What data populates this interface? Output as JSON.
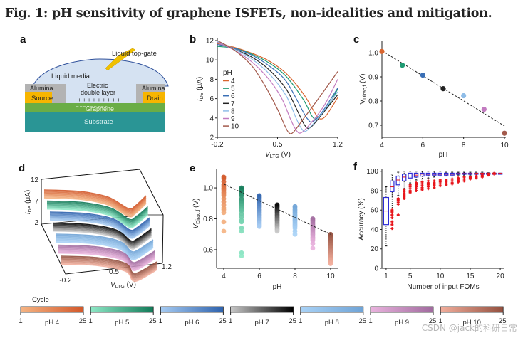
{
  "figure": {
    "title": "Fig. 1: pH sensitivity of graphene ISFETs, non-idealities and mitigation.",
    "watermark": "CSDN @jack的科研日常"
  },
  "colors": {
    "pH4": "#d9652e",
    "pH5": "#1e9a72",
    "pH6": "#3a6fb5",
    "pH7": "#222222",
    "pH8": "#8fbde8",
    "pH9": "#c27bc0",
    "pH10": "#a35a4c",
    "box_blue": "#2b2bd6",
    "outlier_red": "#e8151b",
    "median_red": "#e8151b"
  },
  "panel_a": {
    "letter": "a",
    "labels": {
      "liquid_top_gate": "Liquid top-gate",
      "liquid_media": "Liquid media",
      "alumina_left": "Alumina",
      "alumina_right": "Alumina",
      "electric_double_layer_1": "Electric",
      "electric_double_layer_2": "double layer",
      "plus_signs": "+ + + + + + + + +",
      "minus_signs": "– – – – – – – – –",
      "source": "Source",
      "drain": "Drain",
      "graphene": "Graphene",
      "substrate": "Substrate"
    },
    "layer_colors": {
      "liquid": "#d5e2f2",
      "liquid_edge": "#2d4f9a",
      "alumina": "#b3b3b3",
      "electrode": "#f7b500",
      "graphene": "#6aad46",
      "substrate": "#2a9595",
      "gate": "#f0c000"
    }
  },
  "chart_data": [
    {
      "id": "b",
      "type": "line",
      "title": "",
      "xlabel": "V_LTG (V)",
      "ylabel": "I_DS (μA)",
      "xlim": [
        -0.2,
        1.2
      ],
      "ylim": [
        2,
        12
      ],
      "xticks": [
        "-0.2",
        "0.5",
        "1.2"
      ],
      "yticks": [
        "2",
        "4",
        "6",
        "8",
        "10",
        "12"
      ],
      "legend_title": "pH",
      "legend_position": "left-center",
      "series": [
        {
          "name": "4",
          "color_key": "pH4",
          "x": [
            -0.2,
            0.0,
            0.2,
            0.4,
            0.6,
            0.8,
            0.95,
            1.0,
            1.05,
            1.1,
            1.2
          ],
          "y": [
            11.7,
            11.3,
            10.7,
            9.9,
            8.6,
            6.5,
            4.3,
            3.9,
            4.1,
            4.7,
            6.1
          ]
        },
        {
          "name": "5",
          "color_key": "pH5",
          "x": [
            -0.2,
            0.0,
            0.2,
            0.4,
            0.6,
            0.8,
            0.9,
            0.95,
            1.0,
            1.1,
            1.2
          ],
          "y": [
            11.4,
            11.2,
            10.6,
            9.7,
            8.3,
            5.9,
            4.2,
            3.9,
            4.2,
            5.4,
            7.0
          ]
        },
        {
          "name": "6",
          "color_key": "pH6",
          "x": [
            -0.2,
            0.0,
            0.2,
            0.4,
            0.6,
            0.8,
            0.85,
            0.9,
            1.0,
            1.1,
            1.2
          ],
          "y": [
            11.6,
            11.2,
            10.5,
            9.4,
            7.8,
            4.6,
            3.9,
            3.6,
            4.4,
            5.7,
            7.1
          ]
        },
        {
          "name": "7",
          "color_key": "pH7",
          "x": [
            -0.2,
            0.0,
            0.2,
            0.4,
            0.6,
            0.75,
            0.82,
            0.88,
            1.0,
            1.1,
            1.2
          ],
          "y": [
            11.8,
            11.1,
            10.3,
            9.0,
            7.0,
            4.4,
            3.2,
            3.0,
            4.2,
            5.3,
            6.4
          ]
        },
        {
          "name": "8",
          "color_key": "pH8",
          "x": [
            -0.2,
            0.0,
            0.2,
            0.4,
            0.6,
            0.72,
            0.78,
            0.84,
            1.0,
            1.1,
            1.2
          ],
          "y": [
            11.9,
            11.1,
            10.1,
            8.6,
            6.3,
            3.9,
            2.9,
            2.7,
            4.3,
            5.5,
            6.7
          ]
        },
        {
          "name": "9",
          "color_key": "pH9",
          "x": [
            -0.2,
            0.0,
            0.2,
            0.4,
            0.55,
            0.65,
            0.72,
            0.78,
            0.9,
            1.05,
            1.2
          ],
          "y": [
            11.8,
            11.0,
            9.8,
            8.0,
            6.0,
            3.9,
            2.7,
            2.5,
            3.6,
            5.4,
            8.0
          ]
        },
        {
          "name": "10",
          "color_key": "pH10",
          "x": [
            -0.2,
            0.0,
            0.2,
            0.35,
            0.5,
            0.58,
            0.63,
            0.68,
            0.8,
            1.0,
            1.2
          ],
          "y": [
            12.0,
            11.0,
            9.4,
            7.4,
            4.9,
            3.3,
            2.5,
            2.5,
            3.9,
            6.3,
            8.8
          ]
        }
      ]
    },
    {
      "id": "c",
      "type": "scatter",
      "title": "",
      "xlabel": "pH",
      "ylabel": "V_Dirac,f (V)",
      "xlim": [
        4,
        10
      ],
      "ylim": [
        0.65,
        1.05
      ],
      "xticks": [
        "4",
        "6",
        "8",
        "10"
      ],
      "yticks": [
        "0.7",
        "0.8",
        "0.9",
        "1.0"
      ],
      "points": [
        {
          "x": 4,
          "y": 1.005,
          "color_key": "pH4"
        },
        {
          "x": 5,
          "y": 0.948,
          "color_key": "pH5"
        },
        {
          "x": 6,
          "y": 0.907,
          "color_key": "pH6"
        },
        {
          "x": 7,
          "y": 0.851,
          "color_key": "pH7"
        },
        {
          "x": 8,
          "y": 0.822,
          "color_key": "pH8"
        },
        {
          "x": 9,
          "y": 0.766,
          "color_key": "pH9"
        },
        {
          "x": 10,
          "y": 0.667,
          "color_key": "pH10"
        }
      ],
      "fit_line": {
        "style": "dashed",
        "x": [
          4,
          10
        ],
        "y": [
          1.008,
          0.697
        ]
      }
    },
    {
      "id": "d",
      "type": "line",
      "subtype": "3d-waterfall",
      "xlabel": "V_LTG (V)",
      "ylabel": "I_DS (μA)",
      "xticks": [
        "-0.2",
        "0.5",
        "1.2"
      ],
      "zticks": [
        "2",
        "7",
        "12"
      ],
      "series_groups": [
        "pH 4",
        "pH 5",
        "pH 6",
        "pH 7",
        "pH 8",
        "pH 9",
        "pH 10"
      ],
      "cycles_per_group": 25
    },
    {
      "id": "e",
      "type": "scatter",
      "xlabel": "pH",
      "ylabel": "V_Dirac,f (V)",
      "xlim": [
        3.6,
        10.4
      ],
      "ylim": [
        0.48,
        1.12
      ],
      "xticks": [
        "4",
        "6",
        "8",
        "10"
      ],
      "yticks": [
        "0.6",
        "0.8",
        "1.0"
      ],
      "groups": [
        {
          "x": 4,
          "color_key": "pH4",
          "values": [
            1.07,
            1.06,
            1.04,
            1.02,
            1.01,
            1.0,
            0.99,
            0.98,
            0.97,
            0.96,
            0.95,
            0.93,
            0.91,
            0.89,
            0.87,
            0.86,
            0.84,
            0.78,
            0.72
          ]
        },
        {
          "x": 5,
          "color_key": "pH5",
          "values": [
            1.0,
            0.99,
            0.98,
            0.97,
            0.96,
            0.95,
            0.93,
            0.92,
            0.91,
            0.9,
            0.89,
            0.88,
            0.87,
            0.86,
            0.85,
            0.83,
            0.81,
            0.79,
            0.78,
            0.74,
            0.72,
            0.58,
            0.56
          ]
        },
        {
          "x": 6,
          "color_key": "pH6",
          "values": [
            0.95,
            0.94,
            0.93,
            0.92,
            0.91,
            0.9,
            0.89,
            0.88,
            0.87,
            0.86,
            0.85,
            0.84,
            0.83,
            0.82,
            0.81,
            0.8,
            0.79,
            0.78,
            0.77,
            0.76,
            0.75
          ]
        },
        {
          "x": 7,
          "color_key": "pH7",
          "values": [
            0.89,
            0.88,
            0.87,
            0.86,
            0.85,
            0.84,
            0.83,
            0.82,
            0.81,
            0.8,
            0.79,
            0.78,
            0.77,
            0.76,
            0.75,
            0.74,
            0.73,
            0.72
          ]
        },
        {
          "x": 8,
          "color_key": "pH8",
          "values": [
            0.88,
            0.87,
            0.86,
            0.85,
            0.84,
            0.83,
            0.82,
            0.81,
            0.8,
            0.79,
            0.78,
            0.77,
            0.76,
            0.75,
            0.74,
            0.72,
            0.7
          ]
        },
        {
          "x": 9,
          "color_key": "pH9",
          "values": [
            0.8,
            0.79,
            0.78,
            0.77,
            0.76,
            0.75,
            0.74,
            0.73,
            0.72,
            0.71,
            0.7,
            0.69,
            0.68,
            0.67,
            0.66,
            0.64,
            0.61
          ]
        },
        {
          "x": 10,
          "color_key": "pH10",
          "values": [
            0.7,
            0.69,
            0.68,
            0.67,
            0.66,
            0.65,
            0.64,
            0.63,
            0.62,
            0.61,
            0.6,
            0.59,
            0.58,
            0.57,
            0.56,
            0.55,
            0.54,
            0.53,
            0.52,
            0.51
          ]
        }
      ],
      "fit_line": {
        "style": "dashed",
        "x": [
          4,
          10
        ],
        "y": [
          1.025,
          0.7
        ]
      }
    },
    {
      "id": "f",
      "type": "box",
      "xlabel": "Number of input FOMs",
      "ylabel": "Accuracy (%)",
      "xlim": [
        0.3,
        20.7
      ],
      "ylim": [
        0,
        102
      ],
      "xticks": [
        "1",
        "5",
        "10",
        "15",
        "20"
      ],
      "yticks": [
        "0",
        "20",
        "40",
        "60",
        "80",
        "100"
      ],
      "boxes": [
        {
          "n": 1,
          "whisker_low": 23,
          "q1": 45,
          "median": 59,
          "q3": 73,
          "whisker_high": 84,
          "outliers": []
        },
        {
          "n": 2,
          "whisker_low": 62,
          "q1": 79,
          "median": 84,
          "q3": 90,
          "whisker_high": 97,
          "outliers": [
            60,
            58,
            55,
            52,
            48,
            45,
            41
          ]
        },
        {
          "n": 3,
          "whisker_low": 75,
          "q1": 86,
          "median": 91,
          "q3": 95,
          "whisker_high": 99,
          "outliers": [
            72,
            71,
            70,
            68,
            66,
            55
          ]
        },
        {
          "n": 4,
          "whisker_low": 82,
          "q1": 90,
          "median": 94,
          "q3": 97,
          "whisker_high": 100,
          "outliers": [
            81,
            79,
            77,
            76,
            75,
            74,
            73,
            72
          ]
        },
        {
          "n": 5,
          "whisker_low": 88,
          "q1": 93,
          "median": 95,
          "q3": 98,
          "whisker_high": 100,
          "outliers": [
            86,
            84,
            82,
            80,
            79,
            78
          ]
        },
        {
          "n": 6,
          "whisker_low": 91,
          "q1": 94,
          "median": 96,
          "q3": 98,
          "whisker_high": 100,
          "outliers": [
            88,
            86,
            84,
            82,
            80
          ]
        },
        {
          "n": 7,
          "whisker_low": 92,
          "q1": 95,
          "median": 97,
          "q3": 98,
          "whisker_high": 100,
          "outliers": [
            89,
            87,
            85,
            83,
            81
          ]
        },
        {
          "n": 8,
          "whisker_low": 93,
          "q1": 96,
          "median": 97,
          "q3": 98,
          "whisker_high": 100,
          "outliers": [
            90,
            88,
            86,
            84,
            82
          ]
        },
        {
          "n": 9,
          "whisker_low": 94,
          "q1": 96,
          "median": 97,
          "q3": 98,
          "whisker_high": 100,
          "outliers": [
            90,
            88,
            86,
            85,
            83
          ]
        },
        {
          "n": 10,
          "whisker_low": 95,
          "q1": 96,
          "median": 97,
          "q3": 98,
          "whisker_high": 100,
          "outliers": [
            91,
            89,
            87,
            85
          ]
        },
        {
          "n": 11,
          "whisker_low": 95,
          "q1": 96,
          "median": 97,
          "q3": 98,
          "whisker_high": 99,
          "outliers": [
            91,
            89,
            87,
            86
          ]
        },
        {
          "n": 12,
          "whisker_low": 95,
          "q1": 96,
          "median": 97,
          "q3": 98,
          "whisker_high": 99,
          "outliers": [
            92,
            90,
            88,
            87
          ]
        },
        {
          "n": 13,
          "whisker_low": 96,
          "q1": 97,
          "median": 97.5,
          "q3": 98,
          "whisker_high": 99,
          "outliers": [
            93,
            91,
            89
          ]
        },
        {
          "n": 14,
          "whisker_low": 96,
          "q1": 97,
          "median": 97.5,
          "q3": 98,
          "whisker_high": 99,
          "outliers": [
            94,
            92,
            90
          ]
        },
        {
          "n": 15,
          "whisker_low": 96,
          "q1": 97,
          "median": 97.5,
          "q3": 98,
          "whisker_high": 99,
          "outliers": [
            94,
            93,
            92
          ]
        },
        {
          "n": 16,
          "whisker_low": 97,
          "q1": 97.5,
          "median": 98,
          "q3": 98,
          "whisker_high": 99,
          "outliers": [
            95,
            94,
            93
          ]
        },
        {
          "n": 17,
          "whisker_low": 97,
          "q1": 97.5,
          "median": 98,
          "q3": 98,
          "whisker_high": 99,
          "outliers": [
            96,
            95,
            94
          ]
        },
        {
          "n": 18,
          "whisker_low": 97,
          "q1": 97.5,
          "median": 98,
          "q3": 98,
          "whisker_high": 98.5,
          "outliers": [
            97,
            96
          ]
        },
        {
          "n": 19,
          "whisker_low": 97.5,
          "q1": 98,
          "median": 98,
          "q3": 98,
          "whisker_high": 98.5,
          "outliers": [
            98,
            97
          ]
        },
        {
          "n": 20,
          "whisker_low": 98,
          "q1": 98,
          "median": 98,
          "q3": 98,
          "whisker_high": 98,
          "outliers": []
        }
      ]
    }
  ],
  "colorbars": {
    "title": "Cycle",
    "min_label": "1",
    "max_label": "25",
    "items": [
      {
        "label": "pH 4",
        "from": "#f5b483",
        "to": "#d2582a"
      },
      {
        "label": "pH 5",
        "from": "#8ee8c6",
        "to": "#127a58"
      },
      {
        "label": "pH 6",
        "from": "#a6cbf2",
        "to": "#2e62ad"
      },
      {
        "label": "pH 7",
        "from": "#c8c8c8",
        "to": "#000000"
      },
      {
        "label": "pH 8",
        "from": "#a9d2f6",
        "to": "#6fa3d6"
      },
      {
        "label": "pH 9",
        "from": "#eab3de",
        "to": "#a06a9e"
      },
      {
        "label": "pH 10",
        "from": "#f2ae9c",
        "to": "#93503f"
      }
    ]
  }
}
